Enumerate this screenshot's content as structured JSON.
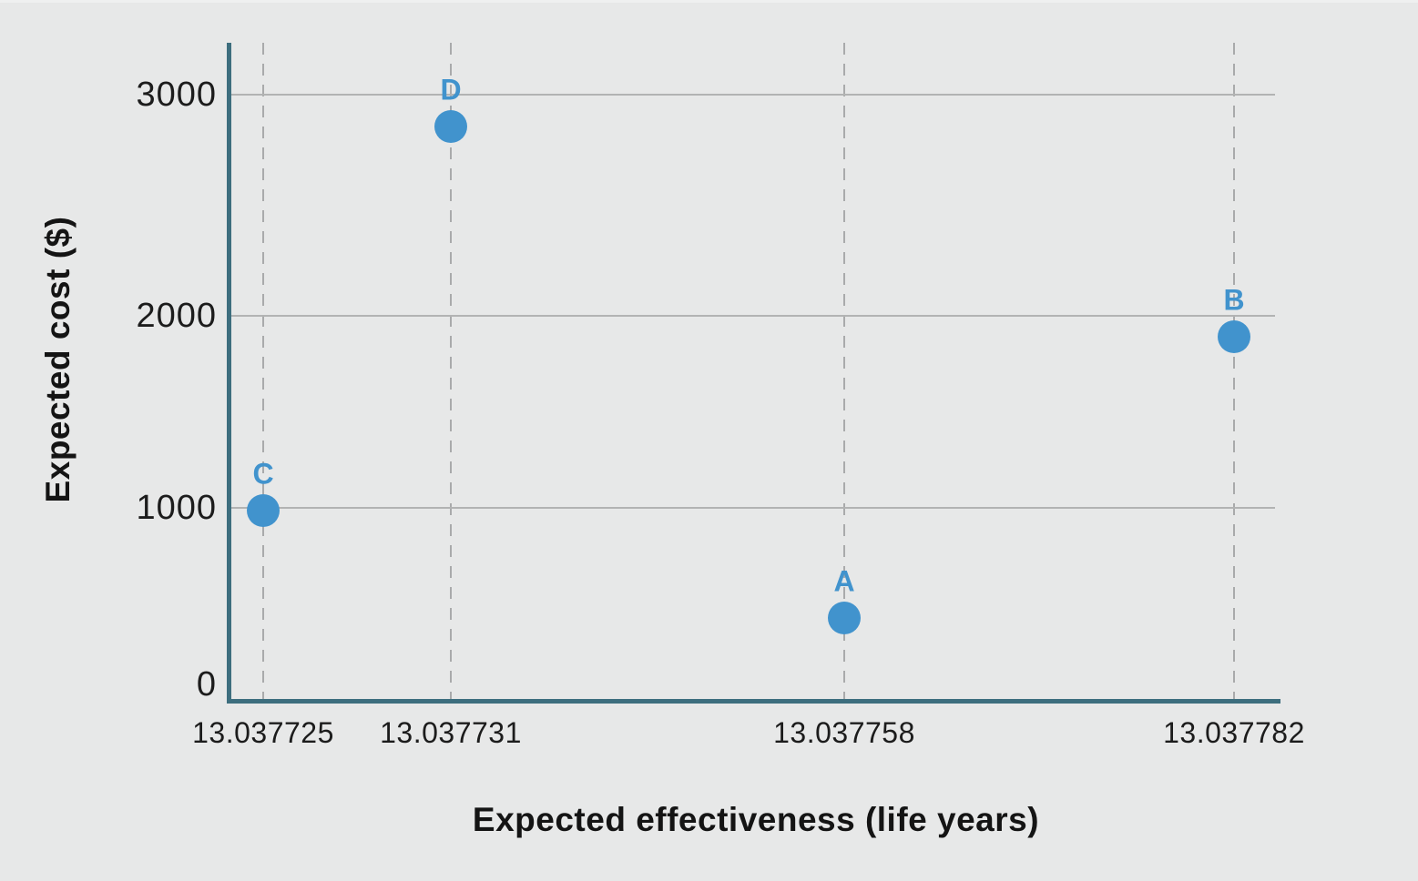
{
  "chart_data": {
    "type": "scatter",
    "title": "",
    "xlabel": "Expected effectiveness (life years)",
    "ylabel": "Expected cost ($)",
    "x_tick_labels": [
      "13.037725",
      "13.037731",
      "13.037758",
      "13.037782"
    ],
    "y_tick_labels": [
      "0",
      "1000",
      "2000",
      "3000"
    ],
    "y_ticks": [
      0,
      1000,
      2000,
      3000
    ],
    "ylim": [
      0,
      3250
    ],
    "grid": {
      "horizontal": "solid",
      "vertical": "dashed"
    },
    "legend": "none",
    "points": [
      {
        "label": "A",
        "x": "13.037758",
        "y": 375
      },
      {
        "label": "B",
        "x": "13.037782",
        "y": 1890
      },
      {
        "label": "C",
        "x": "13.037725",
        "y": 985
      },
      {
        "label": "D",
        "x": "13.037731",
        "y": 2855
      }
    ]
  },
  "colors": {
    "background": "#e7e8e8",
    "axis": "#3d6e7e",
    "gridline": "#b2b3b3",
    "dashed_gridline": "#a9aaab",
    "point": "#4193cd",
    "tick_text": "#1c1c1c"
  }
}
